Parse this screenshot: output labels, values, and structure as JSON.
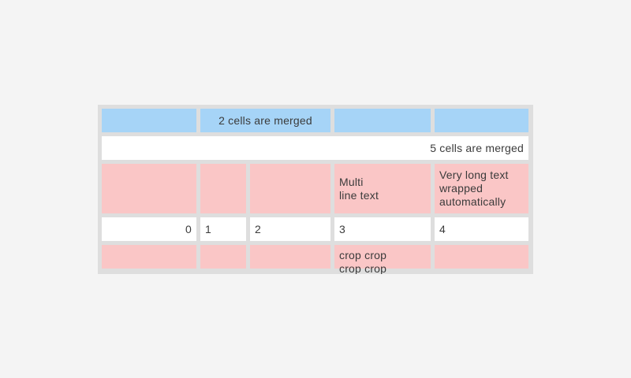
{
  "colors": {
    "page_background": "#f4f4f4",
    "table_background": "#dedede",
    "header_cell_blue": "#a6d4f7",
    "highlight_cell_pink": "#fac6c6",
    "cell_white": "#ffffff",
    "text": "#3b3b3b"
  },
  "table": {
    "rows": [
      {
        "cells": [
          "",
          "2 cells are merged",
          "",
          ""
        ]
      },
      {
        "cells": [
          "5 cells are merged"
        ]
      },
      {
        "cells": [
          "",
          "",
          "",
          "Multi\nline text",
          "Very long text wrapped automatically"
        ]
      },
      {
        "cells": [
          "0",
          "1",
          "2",
          "3",
          "4"
        ]
      },
      {
        "cells": [
          "",
          "",
          "",
          "crop crop\ncrop crop",
          ""
        ]
      }
    ]
  }
}
